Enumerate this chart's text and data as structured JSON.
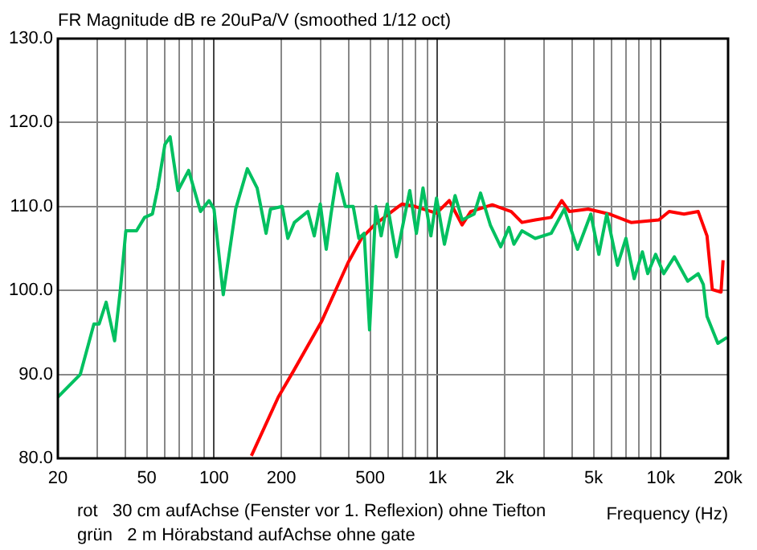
{
  "chart_data": {
    "type": "line",
    "title": "FR Magnitude dB re 20uPa/V (smoothed 1/12 oct)",
    "xlabel": "Frequency (Hz)",
    "log": "x",
    "annotations": [
      "rot   30 cm aufAchse (Fenster vor 1. Reflexion) ohne Tiefton",
      "grün   2 m Hörabstand aufAchse ohne gate"
    ],
    "xlim": [
      20,
      20000
    ],
    "ylim": [
      80,
      130
    ],
    "xticks": [
      {
        "value": 20,
        "label": "20"
      },
      {
        "value": 30,
        "label": null
      },
      {
        "value": 40,
        "label": null
      },
      {
        "value": 50,
        "label": "50"
      },
      {
        "value": 60,
        "label": null
      },
      {
        "value": 70,
        "label": null
      },
      {
        "value": 80,
        "label": null
      },
      {
        "value": 90,
        "label": null
      },
      {
        "value": 100,
        "label": "100"
      },
      {
        "value": 200,
        "label": "200"
      },
      {
        "value": 300,
        "label": null
      },
      {
        "value": 400,
        "label": null
      },
      {
        "value": 500,
        "label": "500"
      },
      {
        "value": 600,
        "label": null
      },
      {
        "value": 700,
        "label": null
      },
      {
        "value": 800,
        "label": null
      },
      {
        "value": 900,
        "label": null
      },
      {
        "value": 1000,
        "label": "1k"
      },
      {
        "value": 2000,
        "label": "2k"
      },
      {
        "value": 3000,
        "label": null
      },
      {
        "value": 4000,
        "label": null
      },
      {
        "value": 5000,
        "label": "5k"
      },
      {
        "value": 6000,
        "label": null
      },
      {
        "value": 7000,
        "label": null
      },
      {
        "value": 8000,
        "label": null
      },
      {
        "value": 9000,
        "label": null
      },
      {
        "value": 10000,
        "label": "10k"
      },
      {
        "value": 20000,
        "label": "20k"
      }
    ],
    "yticks": [
      {
        "value": 80,
        "label": "80.0"
      },
      {
        "value": 90,
        "label": "90.0"
      },
      {
        "value": 100,
        "label": "100.0"
      },
      {
        "value": 110,
        "label": "110.0"
      },
      {
        "value": 120,
        "label": "120.0"
      },
      {
        "value": 130,
        "label": "130.0"
      }
    ],
    "grid": true,
    "legend": false,
    "marker": "none",
    "line_style": "solid",
    "series": [
      {
        "color": "#00c060",
        "x": [
          20,
          25.2,
          29,
          30.6,
          32.9,
          35.9,
          38.1,
          40.3,
          45,
          48.9,
          53,
          56,
          60.3,
          63.6,
          69,
          77,
          87,
          95,
          100,
          110,
          125,
          141,
          156,
          171,
          179,
          202,
          214,
          229,
          263,
          281,
          299,
          318,
          334,
          356,
          387,
          420,
          445,
          470,
          497,
          530,
          560,
          596,
          656,
          752,
          805,
          862,
          935,
          991,
          1075,
          1200,
          1290,
          1460,
          1560,
          1725,
          1920,
          2090,
          2200,
          2390,
          2740,
          3230,
          3700,
          4240,
          4860,
          5280,
          5730,
          6400,
          6980,
          7600,
          8270,
          8740,
          9480,
          10300,
          11500,
          13200,
          14700,
          15500,
          16100,
          18000,
          19800
        ],
        "values": [
          87.3,
          90,
          96,
          96,
          98.6,
          94,
          100.1,
          107.1,
          107.1,
          108.7,
          109.1,
          112.2,
          117.4,
          118.3,
          111.9,
          114.3,
          109.4,
          110.7,
          109.7,
          99.5,
          109.7,
          114.5,
          112.2,
          106.8,
          109.7,
          110,
          106.2,
          108.1,
          109.4,
          106.5,
          110.3,
          104.9,
          109.1,
          113.9,
          110,
          110,
          106.2,
          106.8,
          95.3,
          110,
          106.5,
          110.3,
          104,
          111.9,
          106.8,
          112.2,
          106.5,
          111,
          105.5,
          111.3,
          108.4,
          109.1,
          111.6,
          107.8,
          105.2,
          107.5,
          105.5,
          107.1,
          106.2,
          106.8,
          109.7,
          104.9,
          109.1,
          104.3,
          109.1,
          103,
          106.2,
          101.4,
          104.6,
          102,
          104.3,
          102,
          104,
          101.1,
          102,
          100.7,
          96.9,
          93.7,
          94.4
        ]
      },
      {
        "color": "#ff0000",
        "x": [
          147,
          194,
          228,
          303,
          398,
          457,
          522,
          669,
          695,
          794,
          991,
          1130,
          1290,
          1410,
          1760,
          2140,
          2390,
          2740,
          3230,
          3600,
          3900,
          4730,
          5890,
          7360,
          9800,
          10900,
          12700,
          14700,
          16100,
          17000,
          18600,
          19000
        ],
        "values": [
          80.3,
          87.3,
          90.5,
          96.3,
          103.3,
          106.2,
          107.8,
          110,
          110.3,
          110,
          109.2,
          110.7,
          107.8,
          109.4,
          110.2,
          109.4,
          108.1,
          108.4,
          108.7,
          110.7,
          109.4,
          109.7,
          109.1,
          108.1,
          108.4,
          109.4,
          109.1,
          109.4,
          106.5,
          100.1,
          99.8,
          103.6
        ]
      }
    ]
  }
}
